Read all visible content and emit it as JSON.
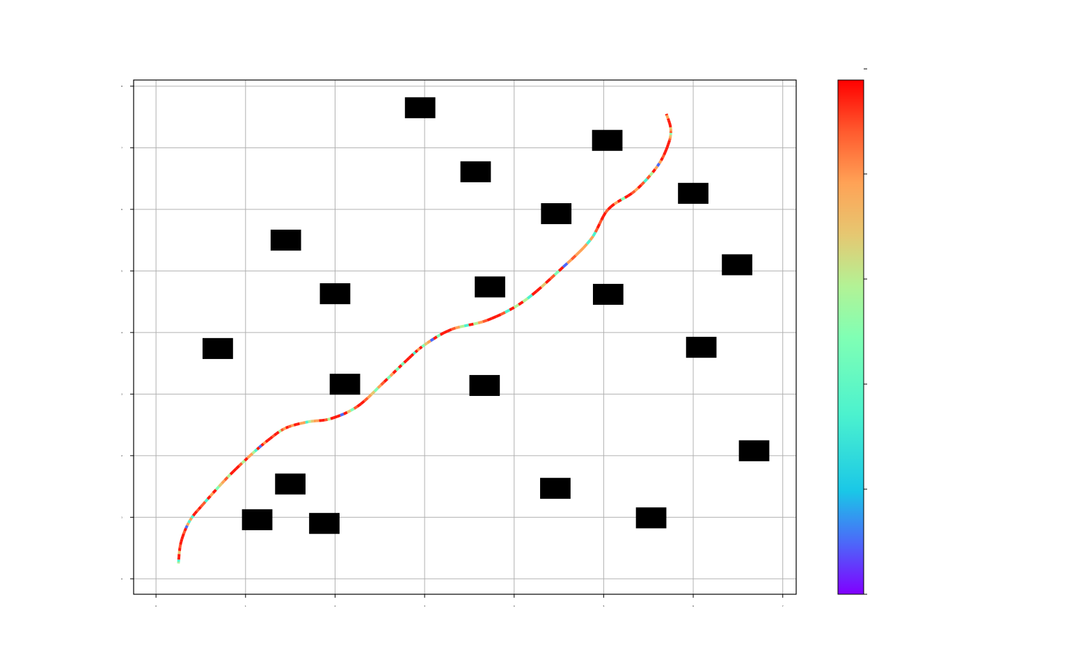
{
  "chart_data": {
    "type": "line",
    "title": "",
    "xlabel": "",
    "ylabel": "",
    "xlim": [
      -0.25,
      7.15
    ],
    "ylim": [
      -0.25,
      8.1
    ],
    "x_ticks": [
      0,
      1,
      2,
      3,
      4,
      5,
      6,
      7
    ],
    "y_ticks": [
      0,
      1,
      2,
      3,
      4,
      5,
      6,
      7,
      8
    ],
    "grid": true,
    "legend": "none",
    "obstacles": [
      {
        "x": 0.52,
        "y": 3.57,
        "w": 0.34,
        "h": 0.34
      },
      {
        "x": 0.96,
        "y": 0.79,
        "w": 0.34,
        "h": 0.34
      },
      {
        "x": 1.28,
        "y": 5.33,
        "w": 0.34,
        "h": 0.34
      },
      {
        "x": 1.33,
        "y": 1.37,
        "w": 0.34,
        "h": 0.34
      },
      {
        "x": 1.71,
        "y": 0.73,
        "w": 0.34,
        "h": 0.34
      },
      {
        "x": 1.83,
        "y": 4.46,
        "w": 0.34,
        "h": 0.34
      },
      {
        "x": 1.94,
        "y": 2.99,
        "w": 0.34,
        "h": 0.34
      },
      {
        "x": 2.78,
        "y": 7.48,
        "w": 0.34,
        "h": 0.34
      },
      {
        "x": 3.4,
        "y": 6.44,
        "w": 0.34,
        "h": 0.34
      },
      {
        "x": 3.5,
        "y": 2.97,
        "w": 0.34,
        "h": 0.34
      },
      {
        "x": 3.56,
        "y": 4.57,
        "w": 0.34,
        "h": 0.34
      },
      {
        "x": 4.3,
        "y": 5.76,
        "w": 0.34,
        "h": 0.34
      },
      {
        "x": 4.29,
        "y": 1.3,
        "w": 0.34,
        "h": 0.34
      },
      {
        "x": 4.87,
        "y": 6.95,
        "w": 0.34,
        "h": 0.34
      },
      {
        "x": 4.88,
        "y": 4.45,
        "w": 0.34,
        "h": 0.34
      },
      {
        "x": 5.36,
        "y": 0.82,
        "w": 0.34,
        "h": 0.34
      },
      {
        "x": 5.83,
        "y": 6.09,
        "w": 0.34,
        "h": 0.34
      },
      {
        "x": 5.92,
        "y": 3.59,
        "w": 0.34,
        "h": 0.34
      },
      {
        "x": 6.32,
        "y": 4.93,
        "w": 0.34,
        "h": 0.34
      },
      {
        "x": 6.51,
        "y": 1.91,
        "w": 0.34,
        "h": 0.34
      }
    ],
    "path": {
      "x": [
        0.25,
        0.28,
        0.38,
        0.55,
        0.8,
        1.05,
        1.25,
        1.45,
        1.7,
        1.95,
        2.25,
        2.55,
        2.8,
        3.0,
        3.3,
        3.7,
        4.1,
        4.5,
        4.85,
        5.05,
        5.35,
        5.6,
        5.72,
        5.75,
        5.7
      ],
      "y": [
        0.25,
        0.6,
        0.95,
        1.25,
        1.65,
        2.0,
        2.25,
        2.45,
        2.55,
        2.6,
        2.8,
        3.2,
        3.55,
        3.8,
        4.05,
        4.2,
        4.5,
        5.0,
        5.5,
        6.0,
        6.3,
        6.7,
        7.05,
        7.3,
        7.55
      ]
    },
    "colorbar": {
      "colormap": "rainbow",
      "ticks": [
        0,
        1,
        2,
        3,
        4,
        5
      ],
      "range": [
        0,
        1
      ]
    }
  }
}
